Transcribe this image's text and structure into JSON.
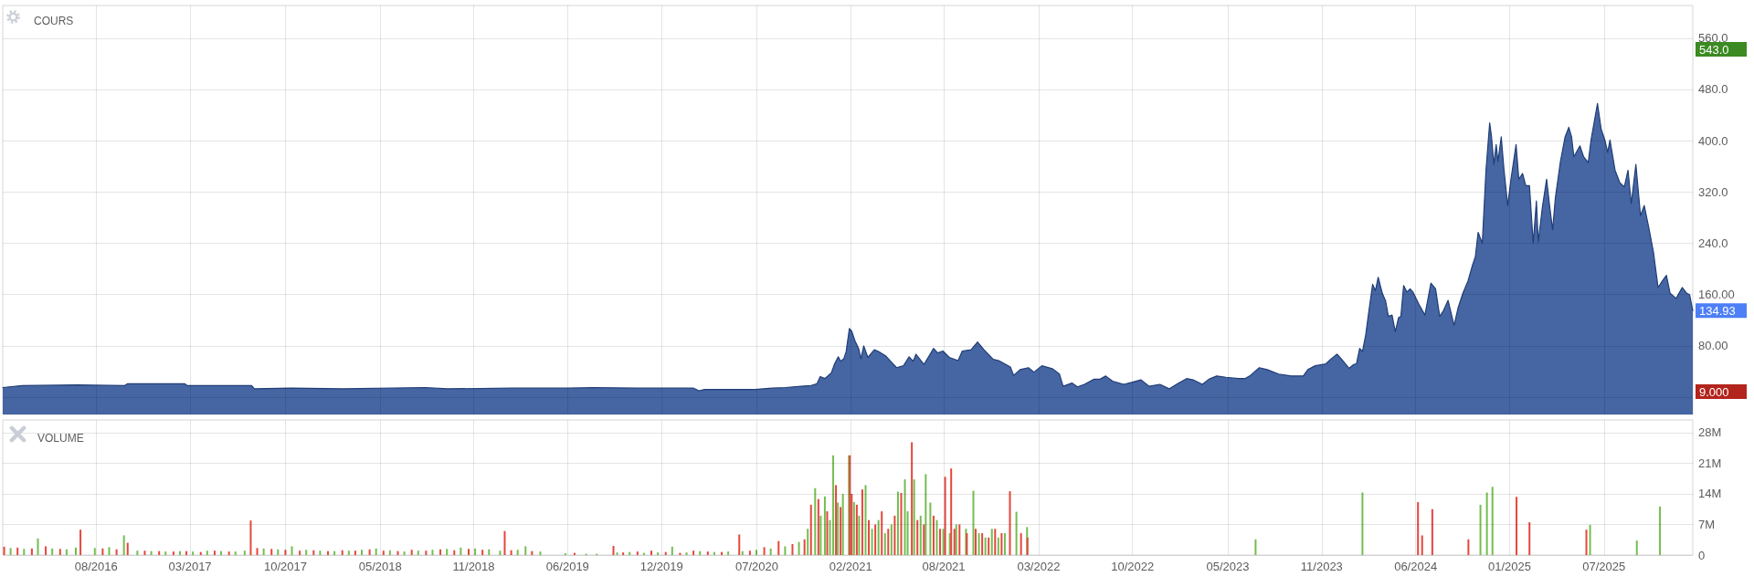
{
  "chart_data": [
    {
      "type": "area",
      "title": "COURS",
      "color": "#4565a3",
      "x": [
        "2016-02-05",
        "2016-03-18",
        "2016-07-15",
        "2016-10-25",
        "2016-11-01",
        "2017-03-04",
        "2017-03-10",
        "2017-07-27",
        "2017-08-02",
        "2017-10-20",
        "2018-02-10",
        "2018-08-06",
        "2018-09-23",
        "2019-02-09",
        "2019-05-11",
        "2019-06-10",
        "2019-08-04",
        "2019-11-08",
        "2020-03-08",
        "2020-03-20",
        "2020-04-01",
        "2020-07-19",
        "2020-08-25",
        "2020-09-23",
        "2020-10-27",
        "2020-11-17",
        "2020-11-30",
        "2020-12-07",
        "2020-12-17",
        "2020-12-31",
        "2021-01-07",
        "2021-01-15",
        "2021-01-20",
        "2021-01-27",
        "2021-02-01",
        "2021-02-08",
        "2021-02-13",
        "2021-02-20",
        "2021-02-28",
        "2021-03-05",
        "2021-03-11",
        "2021-03-20",
        "2021-04-03",
        "2021-04-15",
        "2021-04-28",
        "2021-05-08",
        "2021-05-21",
        "2021-06-05",
        "2021-06-17",
        "2021-06-26",
        "2021-07-02",
        "2021-07-19",
        "2021-07-31",
        "2021-08-09",
        "2021-08-18",
        "2021-08-29",
        "2021-09-12",
        "2021-10-01",
        "2021-10-10",
        "2021-10-29",
        "2021-11-12",
        "2021-11-26",
        "2021-12-16",
        "2021-12-28",
        "2022-01-22",
        "2022-01-29",
        "2022-02-12",
        "2022-03-02",
        "2022-03-14",
        "2022-03-31",
        "2022-04-24",
        "2022-05-08",
        "2022-05-16",
        "2022-06-04",
        "2022-06-16",
        "2022-07-01",
        "2022-07-22",
        "2022-08-04",
        "2022-08-16",
        "2022-08-31",
        "2022-09-24",
        "2022-10-11",
        "2022-10-31",
        "2022-11-18",
        "2022-12-11",
        "2022-12-31",
        "2023-01-21",
        "2023-02-07",
        "2023-02-21",
        "2023-03-13",
        "2023-03-27",
        "2023-04-13",
        "2023-05-03",
        "2023-05-30",
        "2023-06-13",
        "2023-06-25",
        "2023-07-14",
        "2023-07-31",
        "2023-08-25",
        "2023-09-21",
        "2023-10-17",
        "2023-10-27",
        "2023-11-12",
        "2023-12-05",
        "2023-12-15",
        "2023-12-29",
        "2024-01-07",
        "2024-01-24",
        "2024-02-03",
        "2024-02-09",
        "2024-02-16",
        "2024-02-22",
        "2024-02-29",
        "2024-03-07",
        "2024-03-15",
        "2024-03-21",
        "2024-03-27",
        "2024-04-05",
        "2024-04-12",
        "2024-04-18",
        "2024-04-26",
        "2024-05-03",
        "2024-05-10",
        "2024-05-15",
        "2024-05-21",
        "2024-05-28",
        "2024-06-04",
        "2024-06-10",
        "2024-06-23",
        "2024-07-06",
        "2024-07-19",
        "2024-07-29",
        "2024-08-07",
        "2024-08-15",
        "2024-08-25",
        "2024-09-07",
        "2024-09-16",
        "2024-09-26",
        "2024-10-07",
        "2024-10-16",
        "2024-10-23",
        "2024-10-29",
        "2024-11-07",
        "2024-11-15",
        "2024-11-23",
        "2024-11-27",
        "2024-12-02",
        "2024-12-07",
        "2024-12-11",
        "2024-12-18",
        "2024-12-24",
        "2025-01-01",
        "2025-01-08",
        "2025-01-19",
        "2025-01-25",
        "2025-02-02",
        "2025-02-09",
        "2025-02-17",
        "2025-02-25",
        "2025-03-04",
        "2025-03-08",
        "2025-03-17",
        "2025-03-26",
        "2025-04-01",
        "2025-04-08",
        "2025-04-14",
        "2025-04-25",
        "2025-05-05",
        "2025-05-13",
        "2025-05-19",
        "2025-05-24",
        "2025-06-06",
        "2025-06-14",
        "2025-06-24",
        "2025-06-30",
        "2025-07-14",
        "2025-07-22",
        "2025-07-30",
        "2025-08-05",
        "2025-08-10",
        "2025-08-21",
        "2025-08-31",
        "2025-09-10",
        "2025-09-18",
        "2025-09-25",
        "2025-10-05",
        "2025-10-15",
        "2025-10-23",
        "2025-11-02",
        "2025-11-12",
        "2025-11-22",
        "2025-12-01",
        "2025-12-10",
        "2025-12-18",
        "2025-12-31",
        "2026-01-13",
        "2026-01-23",
        "2026-01-29",
        "2026-02-05"
      ],
      "values": [
        15,
        18,
        19,
        18,
        21,
        21,
        18,
        18,
        13,
        14,
        13,
        15,
        13,
        14,
        14,
        14,
        15,
        14,
        14,
        10,
        12,
        12,
        14,
        15,
        17,
        18,
        21,
        32,
        29,
        38,
        52,
        63,
        56,
        60,
        71,
        107,
        103,
        88,
        76,
        60,
        80,
        62,
        74,
        70,
        64,
        56,
        46,
        49,
        63,
        56,
        67,
        51,
        65,
        76,
        69,
        72,
        62,
        57,
        72,
        74,
        86,
        74,
        59,
        57,
        47,
        34,
        43,
        46,
        39,
        49,
        44,
        36,
        17,
        22,
        16,
        20,
        28,
        28,
        33,
        25,
        20,
        23,
        27,
        17,
        20,
        13,
        22,
        29,
        27,
        20,
        28,
        33,
        31,
        29,
        29,
        34,
        46,
        43,
        36,
        33,
        33,
        43,
        49,
        52,
        59,
        67,
        60,
        45,
        51,
        52,
        76,
        71,
        97,
        135,
        176,
        166,
        187,
        162,
        150,
        126,
        128,
        102,
        124,
        126,
        174,
        164,
        169,
        164,
        145,
        128,
        178,
        169,
        126,
        135,
        151,
        112,
        140,
        162,
        181,
        204,
        219,
        257,
        240,
        354,
        428,
        406,
        363,
        394,
        368,
        406,
        354,
        299,
        340,
        394,
        340,
        349,
        330,
        330,
        240,
        306,
        242,
        297,
        340,
        302,
        261,
        311,
        368,
        406,
        421,
        406,
        375,
        392,
        375,
        366,
        401,
        458,
        418,
        401,
        382,
        401,
        354,
        335,
        328,
        354,
        302,
        363,
        283,
        299,
        264,
        226,
        171,
        181,
        190,
        162,
        154,
        171,
        162,
        160,
        134.93
      ],
      "xlim": [
        "2016-02-05",
        "2026-02-05"
      ],
      "xticks": [
        {
          "value": "2016-08-25",
          "label": null
        },
        {
          "value": "2017-03-16",
          "label": null
        },
        {
          "value": "2017-10-08",
          "label": null
        },
        {
          "value": "2018-05-01",
          "label": null
        },
        {
          "value": "2018-11-19",
          "label": null
        },
        {
          "value": "2019-06-10",
          "label": null
        },
        {
          "value": "2019-12-30",
          "label": null
        },
        {
          "value": "2020-07-23",
          "label": null
        },
        {
          "value": "2021-02-11",
          "label": null
        },
        {
          "value": "2021-08-31",
          "label": null
        },
        {
          "value": "2022-03-24",
          "label": null
        },
        {
          "value": "2022-10-13",
          "label": null
        },
        {
          "value": "2023-05-07",
          "label": null
        },
        {
          "value": "2023-11-26",
          "label": null
        },
        {
          "value": "2024-06-16",
          "label": null
        },
        {
          "value": "2025-01-05",
          "label": null
        },
        {
          "value": "2025-07-28",
          "label": null
        }
      ],
      "ylim": [
        -27,
        611
      ],
      "yticks": [
        {
          "value": 0,
          "label": null
        },
        {
          "value": 80,
          "label": "80.00"
        },
        {
          "value": 160,
          "label": "160.00"
        },
        {
          "value": 240,
          "label": "240.0"
        },
        {
          "value": 320,
          "label": "320.0"
        },
        {
          "value": 400,
          "label": "400.0"
        },
        {
          "value": 480,
          "label": "480.0"
        },
        {
          "value": 560,
          "label": "560.0"
        }
      ],
      "grid": true,
      "tick_labels": "y",
      "bands": [
        {
          "axis": "y",
          "from": -27,
          "to": 0,
          "color": "#4565a3"
        }
      ],
      "annotations": [
        "543.0",
        {
          "text": "134.93",
          "x": "2026-02-05",
          "y": 134.93
        },
        "9.000"
      ]
    },
    {
      "type": "bar",
      "title": "VOLUME",
      "series": [
        {
          "color": "#74bd52",
          "x": [
            "2016-02-22",
            "2016-03-22",
            "2016-04-21",
            "2016-05-22",
            "2016-06-22",
            "2016-07-12",
            "2016-08-22",
            "2016-09-22",
            "2016-10-24",
            "2016-11-22",
            "2016-12-22",
            "2017-01-22",
            "2017-02-22",
            "2017-03-22",
            "2017-04-22",
            "2017-05-22",
            "2017-06-22",
            "2017-07-12",
            "2017-08-22",
            "2017-09-22",
            "2017-10-22",
            "2017-11-22",
            "2017-12-22",
            "2018-01-22",
            "2018-02-22",
            "2018-03-22",
            "2018-04-22",
            "2018-05-22",
            "2018-06-22",
            "2018-07-22",
            "2018-08-22",
            "2018-09-22",
            "2018-10-22",
            "2018-11-22",
            "2018-12-22",
            "2019-01-15",
            "2019-02-22",
            "2019-03-11",
            "2019-04-12",
            "2019-06-05",
            "2019-07-20",
            "2019-08-12",
            "2019-09-25",
            "2019-10-22",
            "2019-11-22",
            "2019-12-22",
            "2020-01-22",
            "2020-02-22",
            "2020-03-22",
            "2020-04-22",
            "2020-05-22",
            "2020-06-22",
            "2020-07-22",
            "2020-08-22",
            "2020-09-22",
            "2020-10-22",
            "2020-11-10",
            "2020-11-26",
            "2020-12-08",
            "2020-12-17",
            "2020-12-28",
            "2021-01-04",
            "2021-01-14",
            "2021-01-25",
            "2021-02-07",
            "2021-02-18",
            "2021-03-01",
            "2021-03-15",
            "2021-03-29",
            "2021-04-12",
            "2021-04-26",
            "2021-05-10",
            "2021-05-24",
            "2021-06-08",
            "2021-06-14",
            "2021-06-28",
            "2021-07-12",
            "2021-07-23",
            "2021-08-02",
            "2021-08-16",
            "2021-08-30",
            "2021-09-13",
            "2021-09-27",
            "2021-10-18",
            "2021-11-03",
            "2021-11-15",
            "2021-11-29",
            "2021-12-13",
            "2021-12-27",
            "2022-01-10",
            "2022-02-04",
            "2022-02-27",
            "2023-07-06",
            "2024-02-22",
            "2024-11-03",
            "2024-11-17",
            "2024-11-29",
            "2025-06-28",
            "2025-10-07",
            "2025-11-26"
          ],
          "values": [
            1600000,
            1400000,
            3800000,
            1500000,
            1300000,
            1700000,
            1600000,
            1800000,
            4500000,
            1000000,
            900000,
            800000,
            900000,
            800000,
            1000000,
            900000,
            800000,
            1000000,
            1500000,
            1300000,
            2000000,
            1200000,
            1000000,
            900000,
            1000000,
            1200000,
            1500000,
            1100000,
            800000,
            1000000,
            1200000,
            1400000,
            1700000,
            1500000,
            1300000,
            1000000,
            1200000,
            2000000,
            800000,
            400000,
            300000,
            300000,
            600000,
            700000,
            500000,
            600000,
            1900000,
            600000,
            900000,
            700000,
            800000,
            900000,
            1200000,
            1500000,
            2000000,
            3000000,
            6000000,
            15300000,
            9000000,
            13400000,
            8000000,
            22800000,
            12000000,
            14000000,
            22800000,
            12100000,
            9000000,
            16000000,
            6000000,
            8000000,
            5000000,
            7000000,
            14500000,
            17300000,
            10000000,
            17300000,
            9000000,
            18500000,
            12000000,
            8000000,
            6000000,
            5000000,
            7000000,
            6000000,
            14700000,
            5000000,
            4000000,
            6000000,
            4000000,
            5000000,
            9900000,
            6400000,
            3600000,
            14300000,
            11500000,
            14300000,
            15600000,
            6900000,
            3300000,
            11100000
          ]
        },
        {
          "color": "#e4473d",
          "x": [
            "2016-02-08",
            "2016-03-08",
            "2016-04-08",
            "2016-05-08",
            "2016-06-08",
            "2016-07-22",
            "2016-09-08",
            "2016-10-08",
            "2016-11-01",
            "2016-12-08",
            "2017-01-08",
            "2017-02-08",
            "2017-03-08",
            "2017-04-08",
            "2017-05-08",
            "2017-06-08",
            "2017-07-25",
            "2017-08-08",
            "2017-09-08",
            "2017-10-08",
            "2017-11-08",
            "2017-12-08",
            "2018-01-08",
            "2018-02-08",
            "2018-03-08",
            "2018-04-08",
            "2018-05-08",
            "2018-06-08",
            "2018-07-08",
            "2018-08-08",
            "2018-09-08",
            "2018-10-08",
            "2018-11-08",
            "2018-12-08",
            "2019-01-25",
            "2019-02-08",
            "2019-03-25",
            "2019-06-25",
            "2019-09-17",
            "2019-10-08",
            "2019-11-08",
            "2019-12-08",
            "2020-01-08",
            "2020-02-08",
            "2020-03-08",
            "2020-04-08",
            "2020-05-08",
            "2020-06-15",
            "2020-07-08",
            "2020-08-08",
            "2020-09-08",
            "2020-10-08",
            "2020-11-03",
            "2020-11-17",
            "2020-12-03",
            "2020-12-22",
            "2021-01-10",
            "2021-01-20",
            "2021-02-09",
            "2021-02-13",
            "2021-02-24",
            "2021-03-08",
            "2021-03-22",
            "2021-04-05",
            "2021-04-19",
            "2021-05-03",
            "2021-05-17",
            "2021-05-31",
            "2021-06-23",
            "2021-07-05",
            "2021-07-19",
            "2021-08-09",
            "2021-08-23",
            "2021-09-03",
            "2021-09-16",
            "2021-09-23",
            "2021-10-04",
            "2021-10-20",
            "2021-11-08",
            "2021-11-22",
            "2021-12-06",
            "2021-12-20",
            "2022-01-03",
            "2022-01-21",
            "2022-02-14",
            "2022-02-28",
            "2024-06-21",
            "2024-06-30",
            "2024-07-22",
            "2024-10-08",
            "2025-01-20",
            "2025-02-17",
            "2025-06-20"
          ],
          "values": [
            1900000,
            1700000,
            1500000,
            2000000,
            1400000,
            5800000,
            1500000,
            1300000,
            2800000,
            1000000,
            900000,
            800000,
            900000,
            700000,
            1000000,
            800000,
            7900000,
            1600000,
            1400000,
            1200000,
            1000000,
            1100000,
            900000,
            1100000,
            1000000,
            1300000,
            1000000,
            900000,
            1200000,
            1000000,
            1300000,
            1100000,
            1400000,
            1200000,
            5500000,
            1100000,
            900000,
            500000,
            2100000,
            600000,
            800000,
            1000000,
            700000,
            500000,
            1000000,
            800000,
            700000,
            4700000,
            1000000,
            1800000,
            3200000,
            2500000,
            3600000,
            11500000,
            12800000,
            10000000,
            16000000,
            11000000,
            22800000,
            14000000,
            11500000,
            15000000,
            8000000,
            7000000,
            10000000,
            6000000,
            9000000,
            14200000,
            25800000,
            8000000,
            7000000,
            9000000,
            6000000,
            17900000,
            19800000,
            6000000,
            7000000,
            5000000,
            6000000,
            5000000,
            4000000,
            6000000,
            5000000,
            14600000,
            5000000,
            4000000,
            12100000,
            4500000,
            10500000,
            3600000,
            13300000,
            7500000,
            5800000
          ]
        }
      ],
      "xlim": [
        "2016-02-05",
        "2026-02-05"
      ],
      "xticks": [
        {
          "value": "2016-08-25",
          "label": "08/2016"
        },
        {
          "value": "2017-03-16",
          "label": "03/2017"
        },
        {
          "value": "2017-10-08",
          "label": "10/2017"
        },
        {
          "value": "2018-05-01",
          "label": "05/2018"
        },
        {
          "value": "2018-11-19",
          "label": "11/2018"
        },
        {
          "value": "2019-06-10",
          "label": "06/2019"
        },
        {
          "value": "2019-12-30",
          "label": "12/2019"
        },
        {
          "value": "2020-07-23",
          "label": "07/2020"
        },
        {
          "value": "2021-02-11",
          "label": "02/2021"
        },
        {
          "value": "2021-08-31",
          "label": "08/2021"
        },
        {
          "value": "2022-03-24",
          "label": "03/2022"
        },
        {
          "value": "2022-10-13",
          "label": "10/2022"
        },
        {
          "value": "2023-05-07",
          "label": "05/2023"
        },
        {
          "value": "2023-11-26",
          "label": "11/2023"
        },
        {
          "value": "2024-06-16",
          "label": "06/2024"
        },
        {
          "value": "2025-01-05",
          "label": "01/2025"
        },
        {
          "value": "2025-07-28",
          "label": "07/2025"
        }
      ],
      "ylim": [
        0,
        30900000
      ],
      "yticks": [
        0,
        {
          "value": 7000000,
          "label": "7M"
        },
        {
          "value": 14000000,
          "label": "14M"
        },
        {
          "value": 21000000,
          "label": "21M"
        },
        {
          "value": 28000000,
          "label": "28M"
        }
      ],
      "grid": true
    }
  ]
}
